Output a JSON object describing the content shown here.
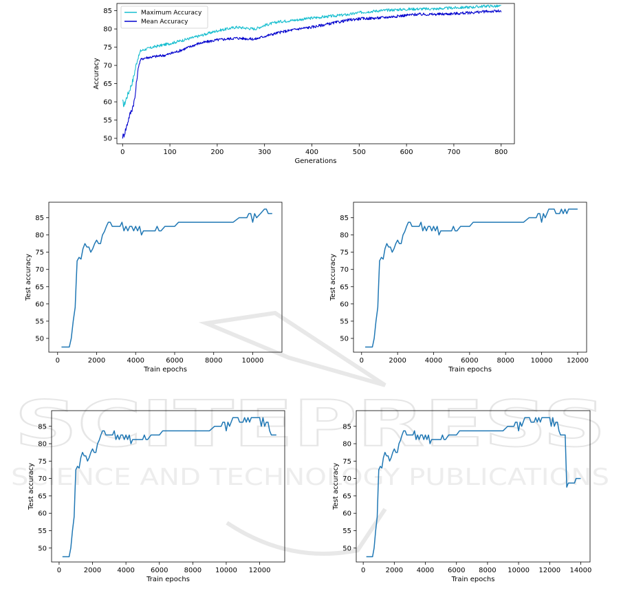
{
  "colors": {
    "max": "#17becf",
    "mean": "#0000cd",
    "test": "#1f77b4",
    "watermark": "#e4e4e4"
  },
  "watermark": {
    "line1": "SCITEPRESS",
    "line2": "SCIENCE AND TECHNOLOGY PUBLICATIONS"
  },
  "chart_data": [
    {
      "type": "line",
      "xlabel": "Generations",
      "ylabel": "Accuracy",
      "xlim": [
        -12,
        828
      ],
      "ylim": [
        48.5,
        87
      ],
      "xticks": [
        0,
        100,
        200,
        300,
        400,
        500,
        600,
        700,
        800
      ],
      "yticks": [
        50,
        55,
        60,
        65,
        70,
        75,
        80,
        85
      ],
      "legend": "top-left",
      "series": [
        {
          "name": "Maximum Accuracy",
          "color": "#17becf",
          "x": [
            0,
            3,
            8,
            14,
            22,
            30,
            38,
            50,
            70,
            100,
            130,
            160,
            200,
            240,
            280,
            300,
            330,
            370,
            400,
            440,
            480,
            500,
            540,
            580,
            620,
            660,
            700,
            740,
            770,
            800
          ],
          "y": [
            60,
            59,
            61,
            63,
            66,
            71,
            74,
            74.5,
            75.2,
            76,
            77,
            78,
            79.5,
            80.5,
            80,
            81,
            82,
            82.5,
            83,
            83.5,
            84,
            84.5,
            85,
            85.3,
            85.5,
            85.5,
            85.8,
            86,
            86.3,
            86.2
          ]
        },
        {
          "name": "Mean Accuracy",
          "color": "#0000cd",
          "x": [
            0,
            3,
            8,
            14,
            20,
            26,
            30,
            34,
            38,
            45,
            60,
            90,
            120,
            160,
            200,
            240,
            280,
            300,
            330,
            370,
            400,
            440,
            480,
            500,
            540,
            580,
            620,
            660,
            700,
            740,
            770,
            800
          ],
          "y": [
            50.5,
            51,
            53,
            56,
            58,
            61,
            66,
            70,
            71.5,
            72,
            72.3,
            72.8,
            74,
            76,
            77,
            77.5,
            77.2,
            78,
            79,
            80,
            80.5,
            81.5,
            82.5,
            82.8,
            83,
            83.5,
            84,
            84,
            84.2,
            84.5,
            84.8,
            84.9
          ]
        }
      ]
    },
    {
      "type": "line",
      "xlabel": "Train epochs",
      "ylabel": "Test accuracy",
      "xlim": [
        -450,
        11500
      ],
      "ylim": [
        46,
        89.5
      ],
      "xticks": [
        0,
        2000,
        4000,
        6000,
        8000,
        10000
      ],
      "yticks": [
        50,
        55,
        60,
        65,
        70,
        75,
        80,
        85
      ],
      "series": [
        {
          "color": "#1f77b4",
          "x": [
            200,
            300,
            600,
            700,
            800,
            900,
            950,
            1000,
            1100,
            1200,
            1300,
            1400,
            1500,
            1600,
            1700,
            1800,
            1900,
            2000,
            2100,
            2200,
            2300,
            2400,
            2500,
            2600,
            2700,
            2800,
            3000,
            3200,
            3300,
            3400,
            3500,
            3600,
            3700,
            3800,
            3900,
            4000,
            4100,
            4200,
            4300,
            4400,
            4600,
            5000,
            5100,
            5200,
            5300,
            5500,
            6000,
            6200,
            8000,
            9000,
            9300,
            9600,
            9700,
            9800,
            9900,
            10000,
            10100,
            10200,
            10400,
            10600,
            10700,
            10800,
            11000
          ],
          "y": [
            47.5,
            47.5,
            47.5,
            50,
            55,
            59,
            66,
            72.5,
            73.5,
            73,
            76,
            77.5,
            76.5,
            76.5,
            75,
            76,
            77.5,
            78.5,
            77.5,
            77.5,
            80,
            81,
            82.5,
            83.7,
            83.7,
            82.5,
            82.5,
            82.5,
            83.7,
            81.2,
            82.5,
            81.2,
            82.5,
            82.5,
            81.2,
            82.5,
            81.2,
            82.5,
            80,
            81.2,
            81.2,
            81.2,
            82.5,
            81.2,
            81.2,
            82.5,
            82.5,
            83.7,
            83.7,
            83.7,
            85,
            85,
            85,
            86.2,
            86.2,
            83.7,
            86.2,
            85,
            86.2,
            87.5,
            87.5,
            86.2,
            86.2
          ]
        }
      ]
    },
    {
      "type": "line",
      "xlabel": "Train epochs",
      "ylabel": "Test accuracy",
      "xlim": [
        -450,
        12500
      ],
      "ylim": [
        46,
        89.5
      ],
      "xticks": [
        0,
        2000,
        4000,
        6000,
        8000,
        10000,
        12000
      ],
      "yticks": [
        50,
        55,
        60,
        65,
        70,
        75,
        80,
        85
      ],
      "series": [
        {
          "color": "#1f77b4",
          "x": [
            200,
            300,
            600,
            700,
            800,
            900,
            950,
            1000,
            1100,
            1200,
            1300,
            1400,
            1500,
            1600,
            1700,
            1800,
            1900,
            2000,
            2100,
            2200,
            2300,
            2400,
            2500,
            2600,
            2700,
            2800,
            3000,
            3200,
            3300,
            3400,
            3500,
            3600,
            3700,
            3800,
            3900,
            4000,
            4100,
            4200,
            4300,
            4400,
            4600,
            5000,
            5100,
            5200,
            5300,
            5500,
            6000,
            6200,
            8000,
            9000,
            9300,
            9600,
            9700,
            9800,
            9900,
            10000,
            10100,
            10200,
            10400,
            10700,
            10800,
            11000,
            11100,
            11200,
            11300,
            11400,
            11500,
            11700,
            12000
          ],
          "y": [
            47.5,
            47.5,
            47.5,
            50,
            55,
            59,
            66,
            72.5,
            73.5,
            73,
            76,
            77.5,
            76.5,
            76.5,
            75,
            76,
            77.5,
            78.5,
            77.5,
            77.5,
            80,
            81,
            82.5,
            83.7,
            83.7,
            82.5,
            82.5,
            82.5,
            83.7,
            81.2,
            82.5,
            81.2,
            82.5,
            82.5,
            81.2,
            82.5,
            81.2,
            82.5,
            80,
            81.2,
            81.2,
            81.2,
            82.5,
            81.2,
            81.2,
            82.5,
            82.5,
            83.7,
            83.7,
            83.7,
            85,
            85,
            85,
            86.2,
            86.2,
            83.7,
            86.2,
            85,
            87.5,
            87.5,
            86.2,
            86.2,
            87.5,
            86.2,
            87.5,
            86.2,
            87.5,
            87.5,
            87.5
          ]
        }
      ]
    },
    {
      "type": "line",
      "xlabel": "Train epochs",
      "ylabel": "Test accuracy",
      "xlim": [
        -450,
        13500
      ],
      "ylim": [
        46,
        89.5
      ],
      "xticks": [
        0,
        2000,
        4000,
        6000,
        8000,
        10000,
        12000
      ],
      "yticks": [
        50,
        55,
        60,
        65,
        70,
        75,
        80,
        85
      ],
      "series": [
        {
          "color": "#1f77b4",
          "x": [
            200,
            300,
            600,
            700,
            800,
            900,
            950,
            1000,
            1100,
            1200,
            1300,
            1400,
            1500,
            1600,
            1700,
            1800,
            1900,
            2000,
            2100,
            2200,
            2300,
            2400,
            2500,
            2600,
            2700,
            2800,
            3000,
            3200,
            3300,
            3400,
            3500,
            3600,
            3700,
            3800,
            3900,
            4000,
            4100,
            4200,
            4300,
            4400,
            4600,
            5000,
            5100,
            5200,
            5300,
            5500,
            6000,
            6200,
            8000,
            9000,
            9300,
            9600,
            9700,
            9800,
            9900,
            10000,
            10100,
            10200,
            10400,
            10700,
            10800,
            11000,
            11100,
            11200,
            11300,
            11400,
            11500,
            11700,
            12000,
            12100,
            12200,
            12300,
            12400,
            12500,
            12600,
            12700,
            12800,
            13000
          ],
          "y": [
            47.5,
            47.5,
            47.5,
            50,
            55,
            59,
            66,
            72.5,
            73.5,
            73,
            76,
            77.5,
            76.5,
            76.5,
            75,
            76,
            77.5,
            78.5,
            77.5,
            77.5,
            80,
            81,
            82.5,
            83.7,
            83.7,
            82.5,
            82.5,
            82.5,
            83.7,
            81.2,
            82.5,
            81.2,
            82.5,
            82.5,
            81.2,
            82.5,
            81.2,
            82.5,
            80,
            81.2,
            81.2,
            81.2,
            82.5,
            81.2,
            81.2,
            82.5,
            82.5,
            83.7,
            83.7,
            83.7,
            85,
            85,
            85,
            86.2,
            86.2,
            83.7,
            86.2,
            85,
            87.5,
            87.5,
            86.2,
            86.2,
            87.5,
            86.2,
            87.5,
            86.2,
            87.5,
            87.5,
            87.5,
            85,
            87.5,
            85,
            86.2,
            86.2,
            83.7,
            82.5,
            82.5,
            82.5
          ]
        }
      ]
    },
    {
      "type": "line",
      "xlabel": "Train epochs",
      "ylabel": "Test accuracy",
      "xlim": [
        -450,
        14600
      ],
      "ylim": [
        46,
        89.5
      ],
      "xticks": [
        0,
        2000,
        4000,
        6000,
        8000,
        10000,
        12000,
        14000
      ],
      "yticks": [
        50,
        55,
        60,
        65,
        70,
        75,
        80,
        85
      ],
      "series": [
        {
          "color": "#1f77b4",
          "x": [
            200,
            300,
            600,
            700,
            800,
            900,
            950,
            1000,
            1100,
            1200,
            1300,
            1400,
            1500,
            1600,
            1700,
            1800,
            1900,
            2000,
            2100,
            2200,
            2300,
            2400,
            2500,
            2600,
            2700,
            2800,
            3000,
            3200,
            3300,
            3400,
            3500,
            3600,
            3700,
            3800,
            3900,
            4000,
            4100,
            4200,
            4300,
            4400,
            4600,
            5000,
            5100,
            5200,
            5300,
            5500,
            6000,
            6200,
            8000,
            9000,
            9300,
            9600,
            9700,
            9800,
            9900,
            10000,
            10100,
            10200,
            10400,
            10700,
            10800,
            11000,
            11100,
            11200,
            11300,
            11400,
            11500,
            11700,
            12000,
            12100,
            12200,
            12300,
            12400,
            12500,
            12600,
            12700,
            12800,
            13000,
            13100,
            13200,
            13300,
            13400,
            13500,
            13600,
            13700,
            13800,
            14000
          ],
          "y": [
            47.5,
            47.5,
            47.5,
            50,
            55,
            59,
            66,
            72.5,
            73.5,
            73,
            76,
            77.5,
            76.5,
            76.5,
            75,
            76,
            77.5,
            78.5,
            77.5,
            77.5,
            80,
            81,
            82.5,
            83.7,
            83.7,
            82.5,
            82.5,
            82.5,
            83.7,
            81.2,
            82.5,
            81.2,
            82.5,
            82.5,
            81.2,
            82.5,
            81.2,
            82.5,
            80,
            81.2,
            81.2,
            81.2,
            82.5,
            81.2,
            81.2,
            82.5,
            82.5,
            83.7,
            83.7,
            83.7,
            85,
            85,
            85,
            86.2,
            86.2,
            83.7,
            86.2,
            85,
            87.5,
            87.5,
            86.2,
            86.2,
            87.5,
            86.2,
            87.5,
            86.2,
            87.5,
            87.5,
            87.5,
            85,
            87.5,
            85,
            86.2,
            86.2,
            83.7,
            82.5,
            82.5,
            82.5,
            67.5,
            68.7,
            68.7,
            68.7,
            68.7,
            68.7,
            70,
            70,
            70
          ]
        }
      ]
    }
  ]
}
